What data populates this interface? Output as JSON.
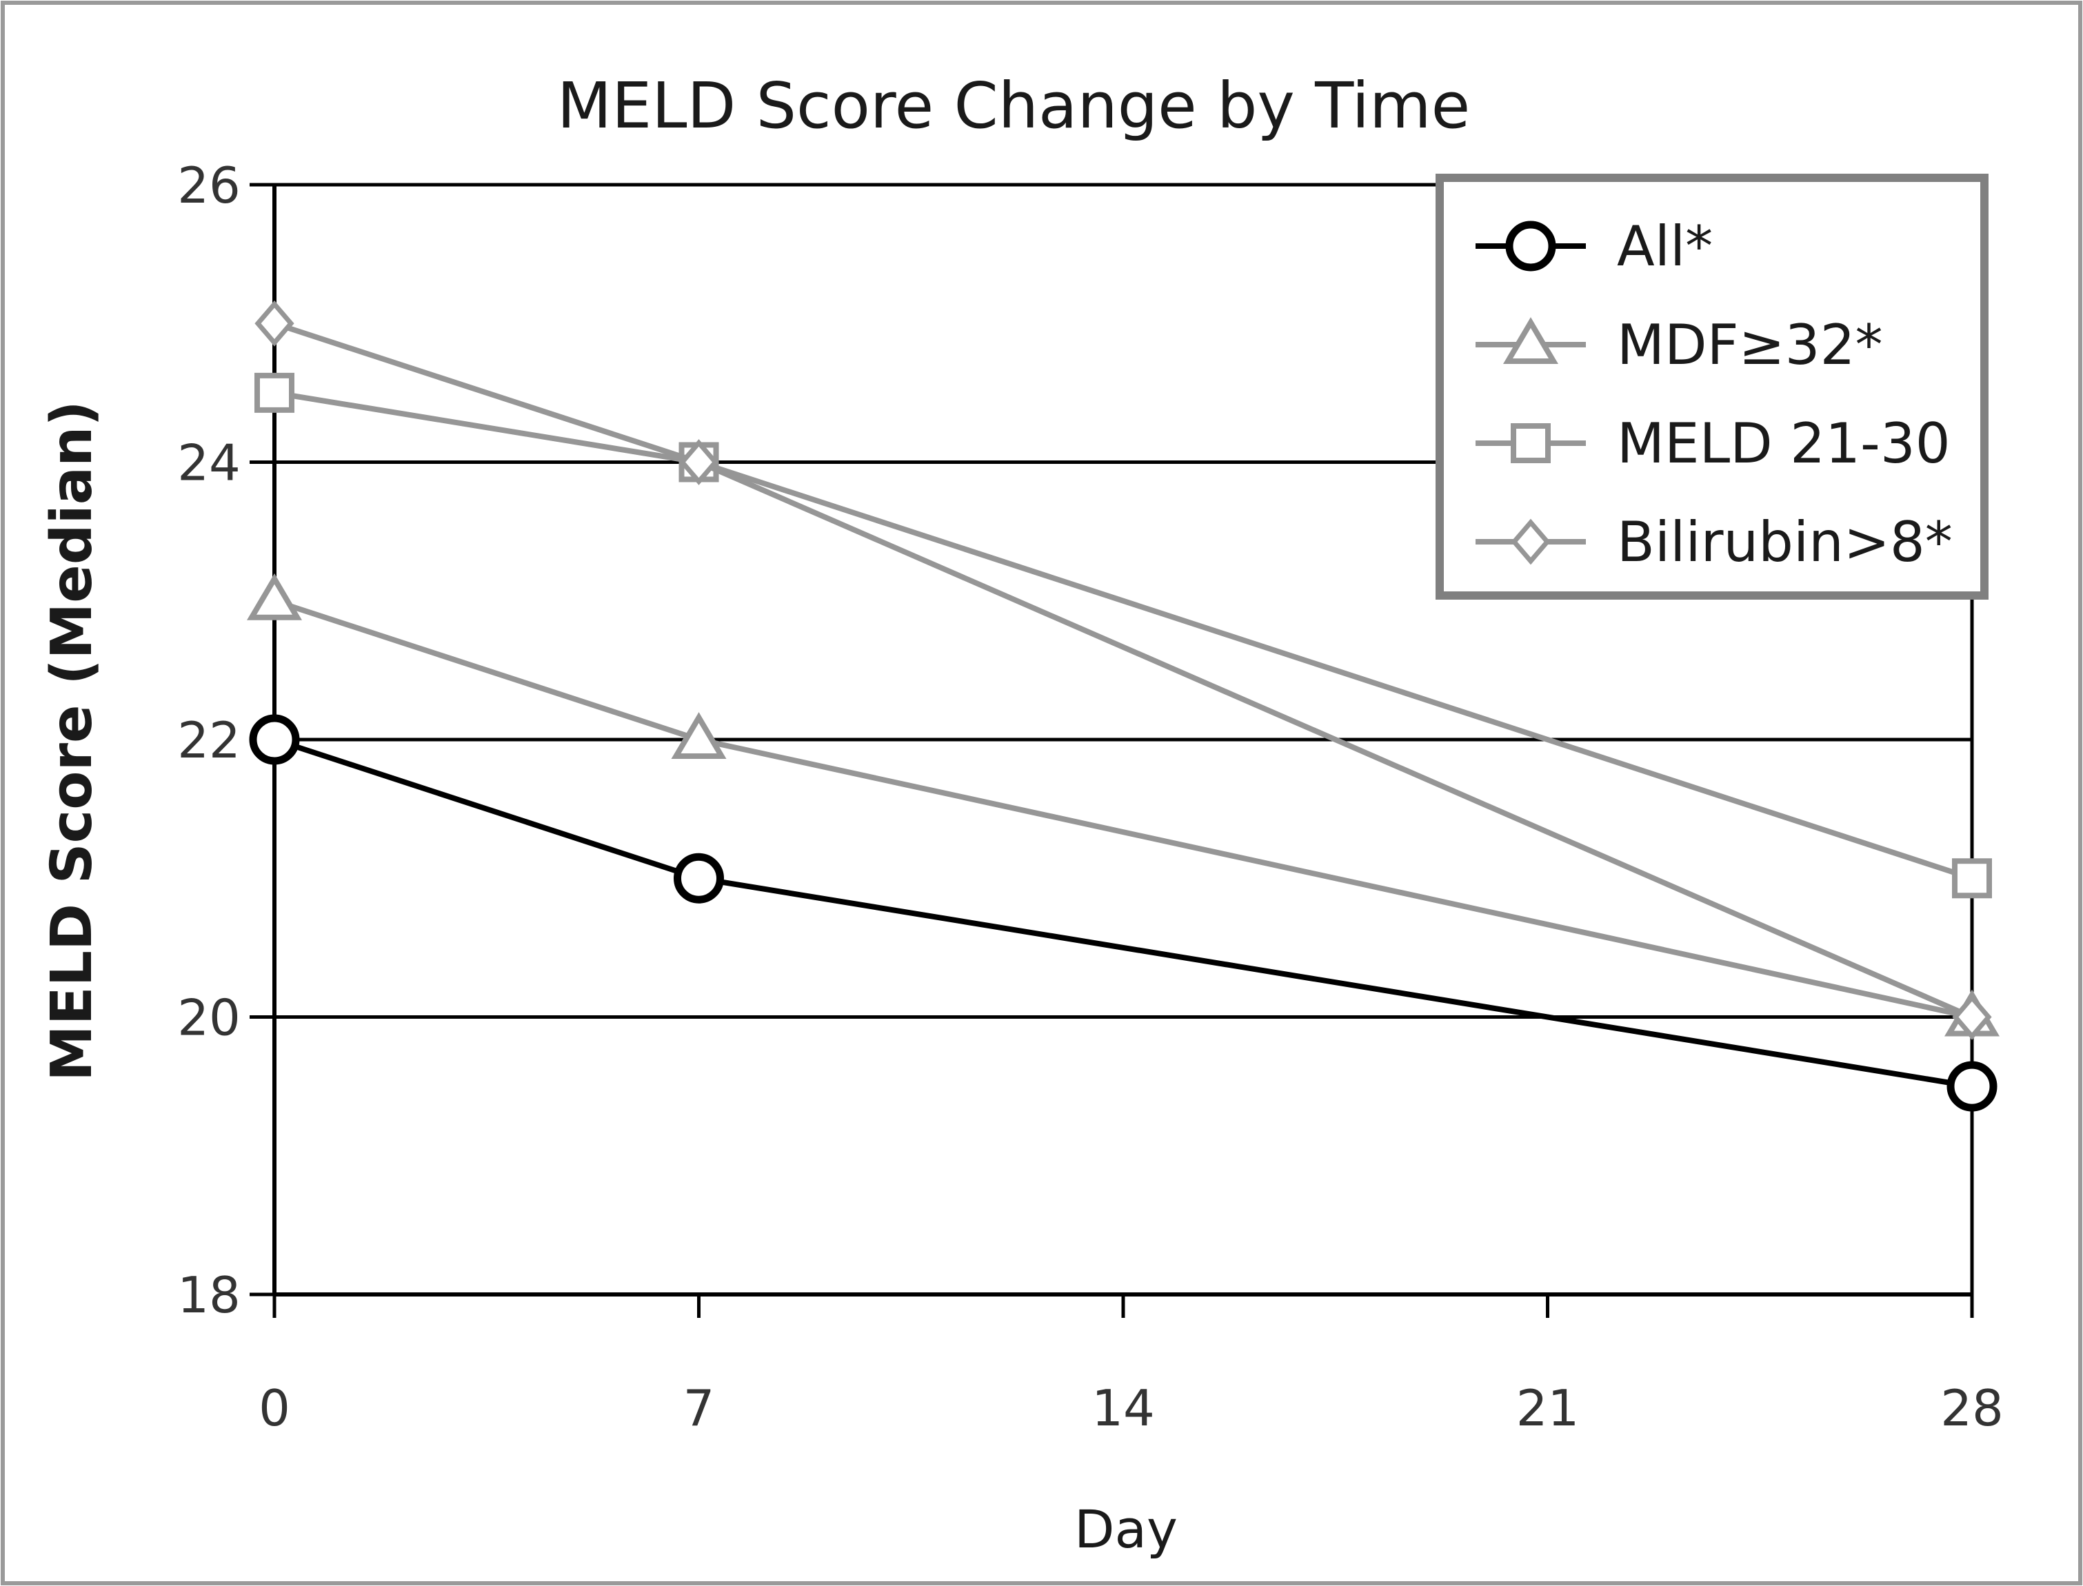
{
  "chart_data": {
    "type": "line",
    "title": "MELD Score Change by Time",
    "xlabel": "Day",
    "ylabel": "MELD Score (Median)",
    "x": [
      0,
      7,
      28
    ],
    "xticks": [
      "0",
      "7",
      "14",
      "21",
      "28"
    ],
    "xlim": [
      0,
      28
    ],
    "ylim": [
      18,
      26
    ],
    "yticks": [
      "18",
      "20",
      "22",
      "24",
      "26"
    ],
    "grid": "horizontal",
    "legend": "top-right",
    "series": [
      {
        "name": "All*",
        "values": [
          22,
          21,
          19.5
        ],
        "color": "#000000",
        "marker": "circle"
      },
      {
        "name": "MDF≥32*",
        "values": [
          23,
          22,
          20
        ],
        "color": "#969696",
        "marker": "triangle"
      },
      {
        "name": "MELD 21-30",
        "values": [
          24.5,
          24,
          21
        ],
        "color": "#969696",
        "marker": "square"
      },
      {
        "name": "Bilirubin>8*",
        "values": [
          25,
          24,
          20
        ],
        "color": "#969696",
        "marker": "diamond"
      }
    ]
  }
}
